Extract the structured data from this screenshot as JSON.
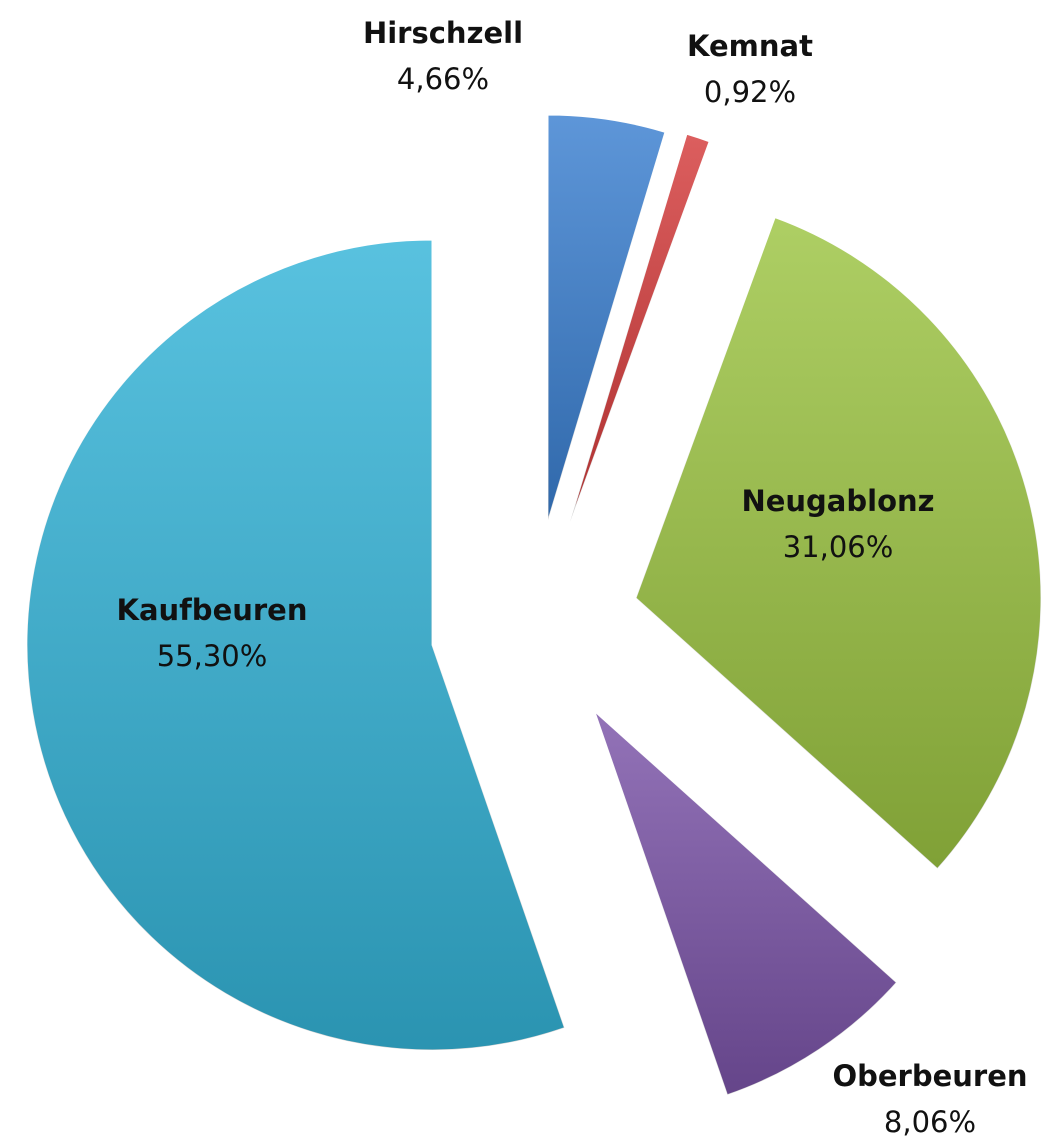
{
  "chart_data": {
    "type": "pie",
    "categories": [
      "Hirschzell",
      "Kemnat",
      "Neugablonz",
      "Oberbeuren",
      "Kaufbeuren"
    ],
    "values": [
      4.66,
      0.92,
      31.06,
      8.06,
      55.3
    ],
    "value_labels": [
      "4,66%",
      "0,92%",
      "31,06%",
      "8,06%",
      "55,30%"
    ],
    "colors": [
      "#3a7fd0",
      "#d43b3b",
      "#9cc442",
      "#7b54a8",
      "#34b4d8"
    ]
  }
}
